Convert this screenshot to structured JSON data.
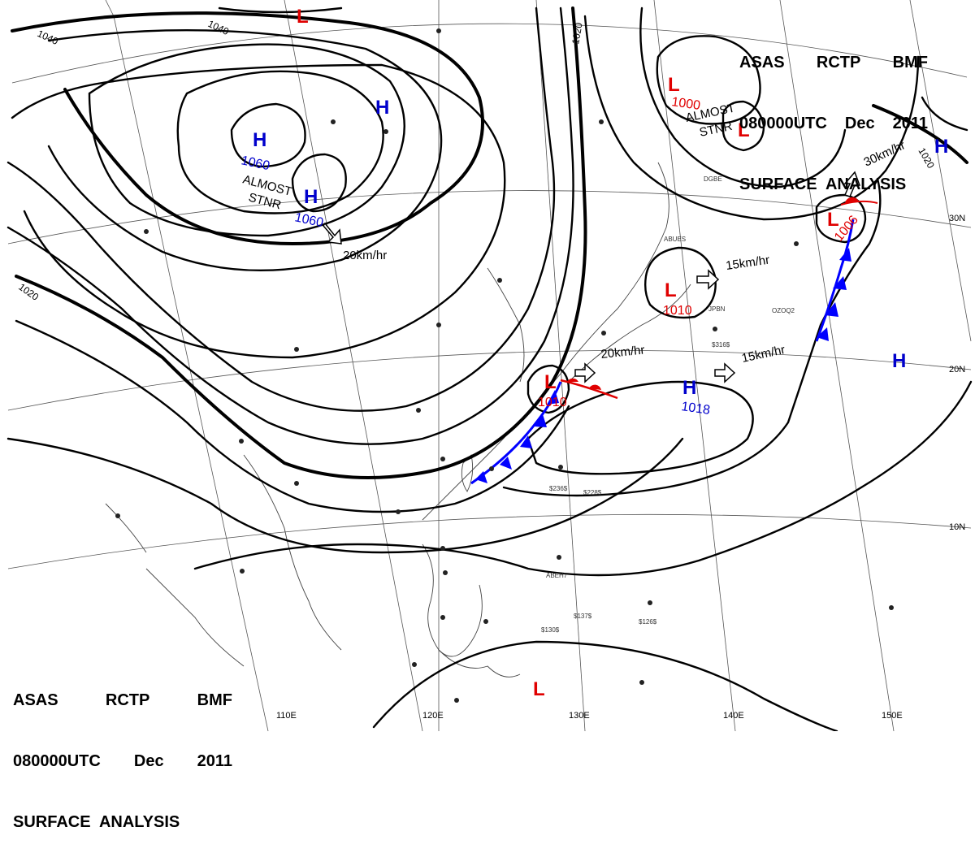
{
  "header_top": {
    "line1": [
      "ASAS",
      "RCTP",
      "BMF"
    ],
    "line2": [
      "080000UTC",
      "Dec",
      "2011"
    ],
    "line3": "SURFACE  ANALYSIS"
  },
  "header_bottom": {
    "line1": [
      "ASAS",
      "RCTP",
      "BMF"
    ],
    "line2": [
      "080000UTC",
      "Dec",
      "2011"
    ],
    "line3": "SURFACE  ANALYSIS"
  },
  "longitude_labels": [
    "110E",
    "120E",
    "130E",
    "140E",
    "150E"
  ],
  "latitude_labels": [
    "30N",
    "20N",
    "10N"
  ],
  "isobar_labels": [
    "1040",
    "1040",
    "1020",
    "1020",
    "1020"
  ],
  "lows": [
    {
      "symbol": "L",
      "pressure": ""
    },
    {
      "symbol": "L",
      "pressure": "1000"
    },
    {
      "symbol": "L",
      "pressure": ""
    },
    {
      "symbol": "L",
      "pressure": "1006"
    },
    {
      "symbol": "L",
      "pressure": "1010"
    },
    {
      "symbol": "L",
      "pressure": "1010"
    },
    {
      "symbol": "L",
      "pressure": ""
    }
  ],
  "highs": [
    {
      "symbol": "H",
      "pressure": "1060"
    },
    {
      "symbol": "H",
      "pressure": "1060"
    },
    {
      "symbol": "H",
      "pressure": ""
    },
    {
      "symbol": "H",
      "pressure": "1018"
    },
    {
      "symbol": "H",
      "pressure": ""
    },
    {
      "symbol": "H",
      "pressure": ""
    }
  ],
  "annotations": {
    "almost_stnr_1a": "ALMOST",
    "almost_stnr_1b": "STNR",
    "almost_stnr_2a": "ALMOST",
    "almost_stnr_2b": "STNR"
  },
  "motion_labels": [
    "20km/hr",
    "15km/hr",
    "30km/hr",
    "20km/hr",
    "15km/hr"
  ],
  "station_samples": [
    "ABUES",
    "JPBN",
    "OZOQ2",
    "ABEH7",
    "DGBE",
    "$316$",
    "$236$",
    "$228$",
    "$130$",
    "$137$",
    "$126$"
  ],
  "colors": {
    "low": "#e00000",
    "high": "#0000cc",
    "cold_front": "#0000ff",
    "warm_front": "#e00000",
    "isobar": "#000000"
  }
}
